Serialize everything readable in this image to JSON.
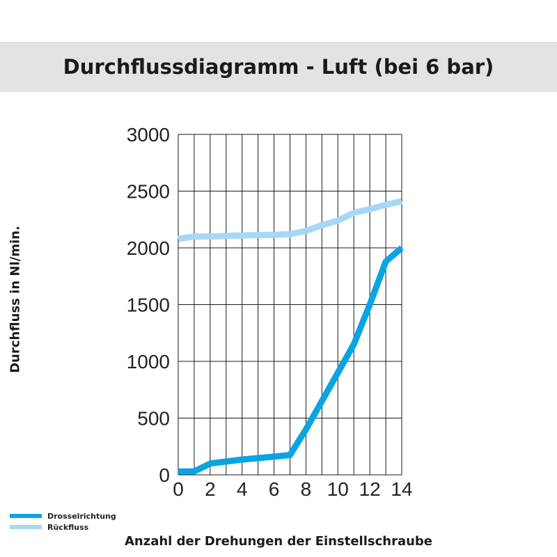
{
  "title": "Durchflussdiagramm - Luft (bei 6 bar)",
  "chart_data": {
    "type": "line",
    "title": "Durchflussdiagramm - Luft (bei 6 bar)",
    "xlabel": "Anzahl der Drehungen der Einstellschraube",
    "ylabel": "Durchfluss in Nl/min.",
    "xlim": [
      0,
      14
    ],
    "ylim": [
      0,
      3000
    ],
    "x_ticks": [
      0,
      2,
      4,
      6,
      8,
      10,
      12,
      14
    ],
    "y_ticks": [
      0,
      500,
      1000,
      1500,
      2000,
      2500,
      3000
    ],
    "grid": true,
    "legend_position": "bottom-left",
    "series": [
      {
        "name": "Drosselrichtung",
        "color": "#0aa5e1",
        "points": [
          [
            0,
            30
          ],
          [
            1,
            30
          ],
          [
            2,
            100
          ],
          [
            4,
            135
          ],
          [
            6,
            160
          ],
          [
            7,
            175
          ],
          [
            8,
            400
          ],
          [
            10,
            900
          ],
          [
            11,
            1150
          ],
          [
            12,
            1500
          ],
          [
            13,
            1880
          ],
          [
            14,
            2000
          ]
        ]
      },
      {
        "name": "Rückfluss",
        "color": "#a6d8f5",
        "points": [
          [
            0,
            2080
          ],
          [
            1,
            2100
          ],
          [
            2,
            2100
          ],
          [
            4,
            2110
          ],
          [
            6,
            2115
          ],
          [
            7,
            2120
          ],
          [
            8,
            2150
          ],
          [
            9,
            2200
          ],
          [
            10,
            2240
          ],
          [
            11,
            2310
          ],
          [
            12,
            2340
          ],
          [
            13,
            2380
          ],
          [
            14,
            2410
          ]
        ]
      }
    ]
  }
}
